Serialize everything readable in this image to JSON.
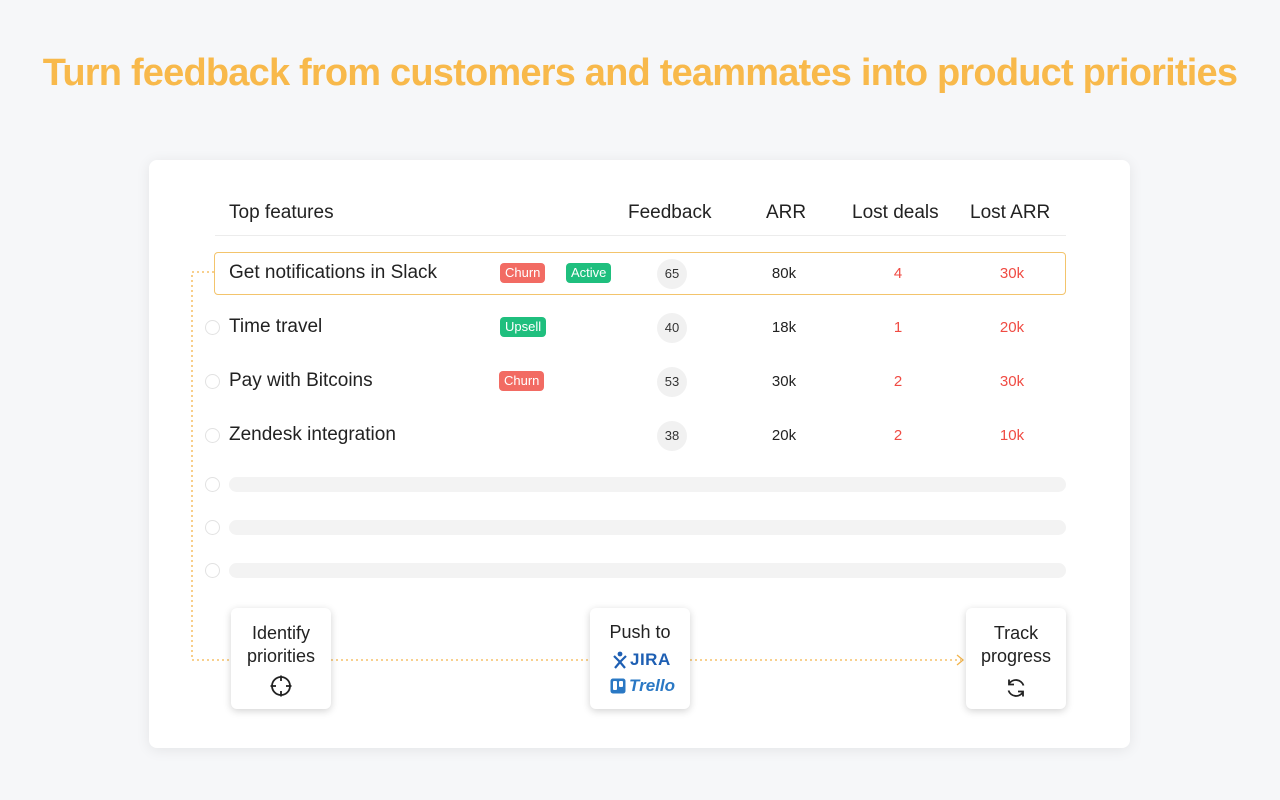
{
  "headline": "Turn feedback from customers and teammates into product priorities",
  "table": {
    "headers": {
      "feature": "Top features",
      "feedback": "Feedback",
      "arr": "ARR",
      "lost_deals": "Lost deals",
      "lost_arr": "Lost ARR"
    },
    "rows": [
      {
        "name": "Get notifications in Slack",
        "tags": [
          "Churn",
          "Active"
        ],
        "feedback": "65",
        "arr": "80k",
        "lost_deals": "4",
        "lost_arr": "30k",
        "highlighted": true
      },
      {
        "name": "Time travel",
        "tags": [
          "Upsell"
        ],
        "feedback": "40",
        "arr": "18k",
        "lost_deals": "1",
        "lost_arr": "20k"
      },
      {
        "name": "Pay with Bitcoins",
        "tags": [
          "Churn"
        ],
        "feedback": "53",
        "arr": "30k",
        "lost_deals": "2",
        "lost_arr": "30k"
      },
      {
        "name": "Zendesk integration",
        "tags": [],
        "feedback": "38",
        "arr": "20k",
        "lost_deals": "2",
        "lost_arr": "10k"
      }
    ]
  },
  "steps": {
    "identify": {
      "line1": "Identify",
      "line2": "priorities",
      "icon": "crosshair-icon"
    },
    "push": {
      "line1": "Push to",
      "jira": "JIRA",
      "trello": "Trello"
    },
    "track": {
      "line1": "Track",
      "line2": "progress",
      "icon": "refresh-icon"
    }
  },
  "colors": {
    "accent": "#f8b94b",
    "churn": "#f26b63",
    "positive_tag": "#1fbf7e",
    "loss": "#f04b43",
    "jira": "#1e5fb3",
    "trello": "#2a78c4"
  }
}
